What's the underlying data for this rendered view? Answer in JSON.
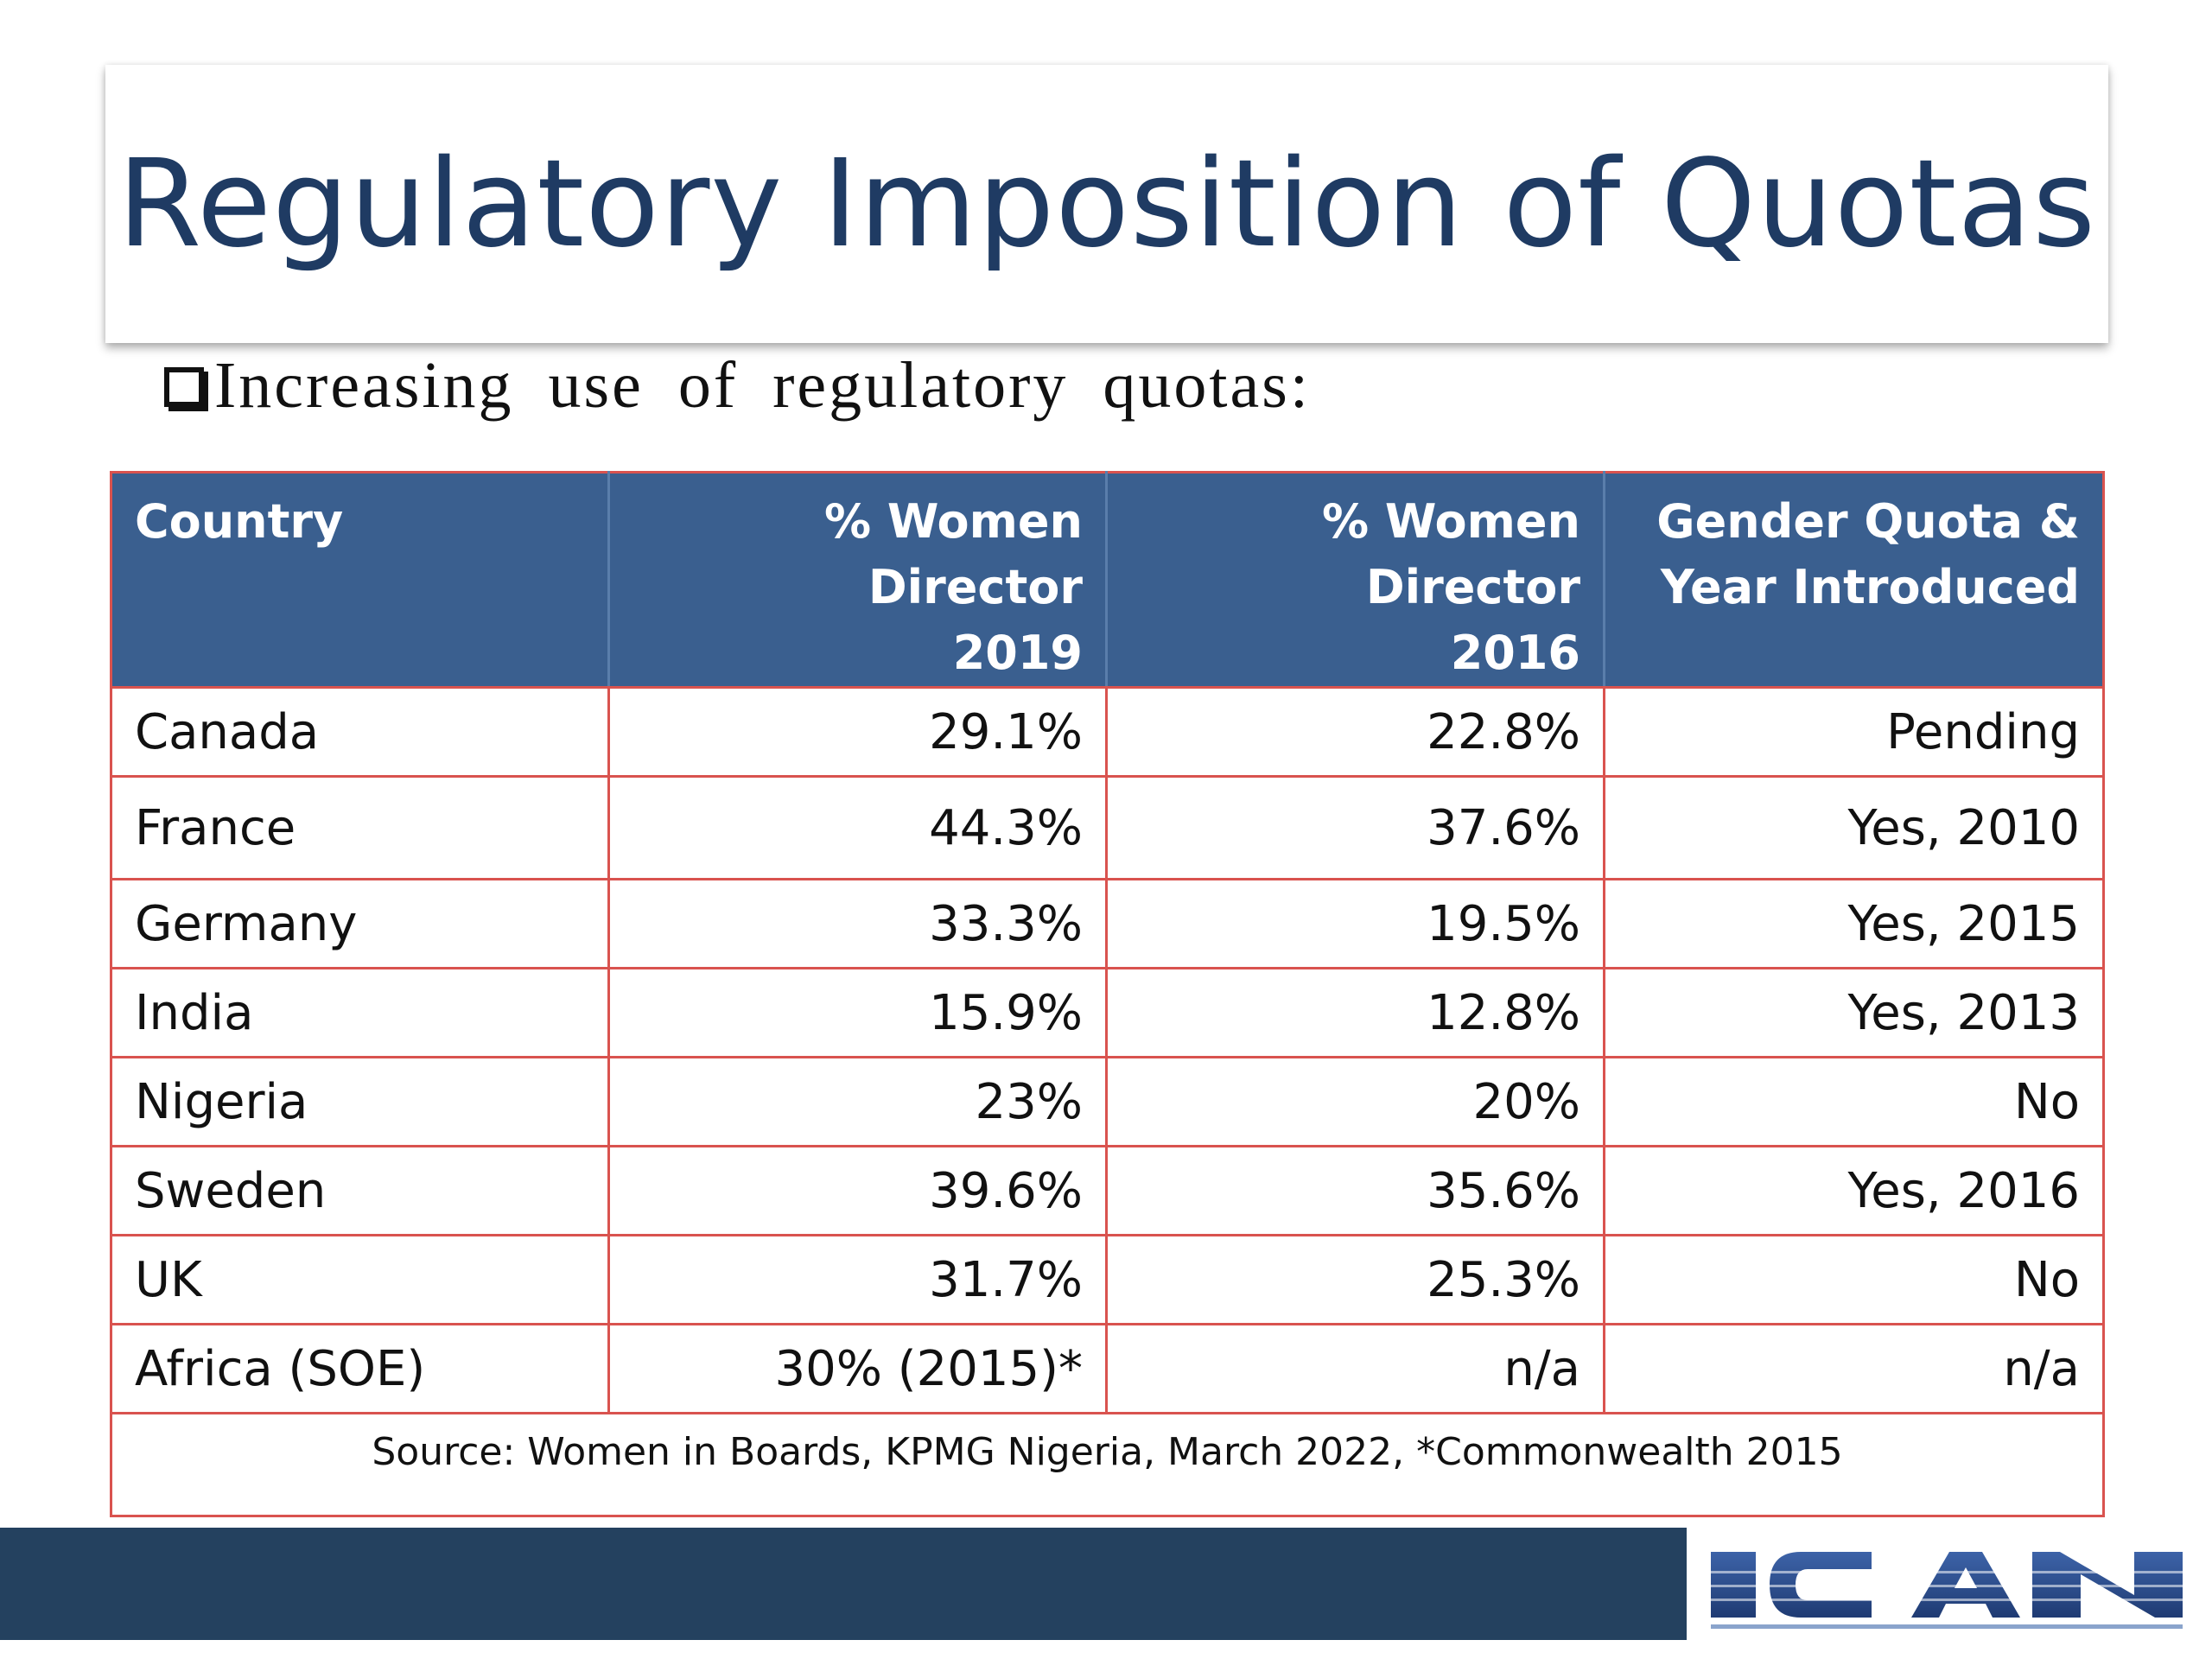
{
  "title": "Regulatory Imposition of Quotas",
  "bullet": "Increasing use of regulatory quotas:",
  "table": {
    "headers": [
      "Country",
      "% Women Director 2019",
      "% Women Director 2016",
      "Gender Quota & Year Introduced"
    ],
    "header_lines": [
      [
        "Country",
        ""
      ],
      [
        "% Women Director",
        "2019"
      ],
      [
        "% Women Director",
        "2016"
      ],
      [
        "Gender Quota &",
        "Year Introduced"
      ]
    ],
    "rows": [
      [
        "Canada",
        "29.1%",
        "22.8%",
        "Pending"
      ],
      [
        "France",
        "44.3%",
        "37.6%",
        "Yes, 2010"
      ],
      [
        "Germany",
        "33.3%",
        "19.5%",
        "Yes, 2015"
      ],
      [
        "India",
        "15.9%",
        "12.8%",
        "Yes, 2013"
      ],
      [
        "Nigeria",
        "23%",
        "20%",
        "No"
      ],
      [
        "Sweden",
        "39.6%",
        "35.6%",
        "Yes, 2016"
      ],
      [
        "UK",
        "31.7%",
        "25.3%",
        "No"
      ],
      [
        "Africa (SOE)",
        "30% (2015)*",
        "n/a",
        "n/a"
      ]
    ],
    "source": "Source: Women in Boards, KPMG Nigeria, March 2022, *Commonwealth 2015"
  },
  "logo": {
    "text": "ICAN",
    "color": "#2e4f8a"
  },
  "colors": {
    "title": "#1f3b63",
    "header_bg": "#3a5f8f",
    "border": "#d9534f",
    "footer_bar": "#24415f"
  }
}
